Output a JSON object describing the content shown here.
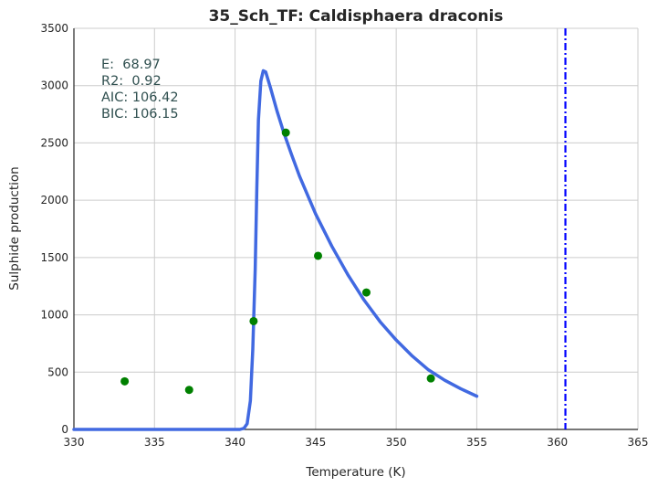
{
  "chart_data": {
    "type": "line",
    "title": "35_Sch_TF: Caldisphaera draconis",
    "xlabel": "Temperature (K)",
    "ylabel": "Sulphide production",
    "xlim": [
      330,
      365
    ],
    "ylim": [
      0,
      3500
    ],
    "x_ticks": [
      "330",
      "335",
      "340",
      "345",
      "350",
      "355",
      "360",
      "365"
    ],
    "y_ticks": [
      "0",
      "500",
      "1000",
      "1500",
      "2000",
      "2500",
      "3000",
      "3500"
    ],
    "grid": true,
    "annotations": [
      "E:  68.97",
      "R2:  0.92",
      "AIC: 106.42",
      "BIC: 106.15"
    ],
    "series": [
      {
        "type": "scatter",
        "color": "#008000",
        "points": [
          {
            "x": 333.15,
            "y": 420
          },
          {
            "x": 337.15,
            "y": 345
          },
          {
            "x": 341.15,
            "y": 945
          },
          {
            "x": 343.15,
            "y": 2590
          },
          {
            "x": 345.15,
            "y": 1515
          },
          {
            "x": 348.15,
            "y": 1195
          },
          {
            "x": 352.15,
            "y": 445
          }
        ]
      },
      {
        "type": "line",
        "color": "#4169e1",
        "points": [
          {
            "x": 330,
            "y": 0
          },
          {
            "x": 338,
            "y": 0
          },
          {
            "x": 340.3,
            "y": 0
          },
          {
            "x": 340.55,
            "y": 10
          },
          {
            "x": 340.75,
            "y": 50
          },
          {
            "x": 340.95,
            "y": 250
          },
          {
            "x": 341.1,
            "y": 700
          },
          {
            "x": 341.25,
            "y": 1400
          },
          {
            "x": 341.35,
            "y": 2100
          },
          {
            "x": 341.45,
            "y": 2700
          },
          {
            "x": 341.6,
            "y": 3040
          },
          {
            "x": 341.75,
            "y": 3130
          },
          {
            "x": 341.9,
            "y": 3120
          },
          {
            "x": 342.2,
            "y": 2980
          },
          {
            "x": 342.6,
            "y": 2780
          },
          {
            "x": 343.0,
            "y": 2600
          },
          {
            "x": 343.5,
            "y": 2400
          },
          {
            "x": 344.0,
            "y": 2210
          },
          {
            "x": 345.0,
            "y": 1880
          },
          {
            "x": 346.0,
            "y": 1600
          },
          {
            "x": 347.0,
            "y": 1350
          },
          {
            "x": 348.0,
            "y": 1130
          },
          {
            "x": 349.0,
            "y": 940
          },
          {
            "x": 350.0,
            "y": 780
          },
          {
            "x": 351.0,
            "y": 640
          },
          {
            "x": 352.0,
            "y": 520
          },
          {
            "x": 353.0,
            "y": 430
          },
          {
            "x": 354.0,
            "y": 355
          },
          {
            "x": 355.0,
            "y": 290
          }
        ]
      },
      {
        "type": "vline",
        "color": "#0000ff",
        "style": "dash-dot",
        "x": 360.5
      }
    ]
  }
}
